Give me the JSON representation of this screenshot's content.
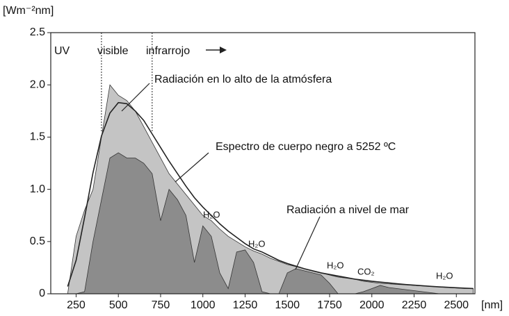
{
  "chart_data": {
    "type": "area",
    "y_label": "[Wm⁻²nm]",
    "x_label": "[nm]",
    "xlim": [
      100,
      2610
    ],
    "ylim": [
      0,
      2.5
    ],
    "xticks": [
      250,
      500,
      750,
      1000,
      1250,
      1500,
      1750,
      2000,
      2250,
      2500
    ],
    "yticks": [
      0,
      0.5,
      {
        "value": 1,
        "label": "1.0"
      },
      1.5,
      {
        "value": 2,
        "label": "2.0"
      },
      2.5
    ],
    "vlines": [
      400,
      700
    ],
    "region_labels": [
      "UV",
      "visible",
      "infrarrojo"
    ],
    "annotations": [
      "H₂O",
      "H₂O",
      "H₂O",
      "CO₂",
      "H₂O"
    ],
    "x": [
      200,
      250,
      300,
      350,
      400,
      450,
      500,
      550,
      600,
      650,
      700,
      750,
      800,
      850,
      900,
      950,
      1000,
      1050,
      1100,
      1150,
      1200,
      1250,
      1300,
      1350,
      1400,
      1450,
      1500,
      1550,
      1600,
      1650,
      1700,
      1750,
      1800,
      1850,
      1900,
      1950,
      2000,
      2050,
      2100,
      2150,
      2200,
      2250,
      2300,
      2350,
      2400,
      2450,
      2500,
      2550,
      2600
    ],
    "series": [
      {
        "name": "Radiación en lo alto de la atmósfera",
        "color": "#c4c4c4",
        "style": "area",
        "values": [
          0,
          0.55,
          0.8,
          1.0,
          1.5,
          2.0,
          1.9,
          1.85,
          1.75,
          1.6,
          1.45,
          1.3,
          1.15,
          1.05,
          0.95,
          0.85,
          0.75,
          0.7,
          0.62,
          0.55,
          0.5,
          0.45,
          0.41,
          0.38,
          0.34,
          0.31,
          0.28,
          0.26,
          0.24,
          0.22,
          0.2,
          0.18,
          0.16,
          0.15,
          0.14,
          0.12,
          0.11,
          0.1,
          0.095,
          0.09,
          0.085,
          0.08,
          0.075,
          0.07,
          0.065,
          0.06,
          0.055,
          0.05,
          0.05
        ]
      },
      {
        "name": "Radiación a nivel de mar",
        "color": "#8c8c8c",
        "style": "area",
        "values": [
          0,
          0,
          0.02,
          0.5,
          0.9,
          1.3,
          1.35,
          1.3,
          1.3,
          1.25,
          1.15,
          0.7,
          1.0,
          0.9,
          0.75,
          0.3,
          0.65,
          0.55,
          0.2,
          0.05,
          0.4,
          0.42,
          0.3,
          0.02,
          0,
          0,
          0.2,
          0.24,
          0.22,
          0.2,
          0.18,
          0.1,
          0,
          0,
          0,
          0.02,
          0.05,
          0.08,
          0.06,
          0.05,
          0.04,
          0.03,
          0.02,
          0.01,
          0,
          0,
          0,
          0,
          0
        ]
      },
      {
        "name": "Espectro de cuerpo negro a 5252 ºC",
        "color": "#222222",
        "style": "line",
        "values": [
          0.07,
          0.32,
          0.73,
          1.16,
          1.51,
          1.73,
          1.83,
          1.82,
          1.75,
          1.66,
          1.53,
          1.4,
          1.27,
          1.15,
          1.03,
          0.92,
          0.83,
          0.75,
          0.67,
          0.6,
          0.54,
          0.48,
          0.43,
          0.4,
          0.36,
          0.32,
          0.29,
          0.265,
          0.24,
          0.22,
          0.2,
          0.185,
          0.17,
          0.155,
          0.14,
          0.13,
          0.12,
          0.112,
          0.104,
          0.096,
          0.089,
          0.083,
          0.077,
          0.071,
          0.066,
          0.062,
          0.058,
          0.054,
          0.05
        ]
      }
    ]
  }
}
